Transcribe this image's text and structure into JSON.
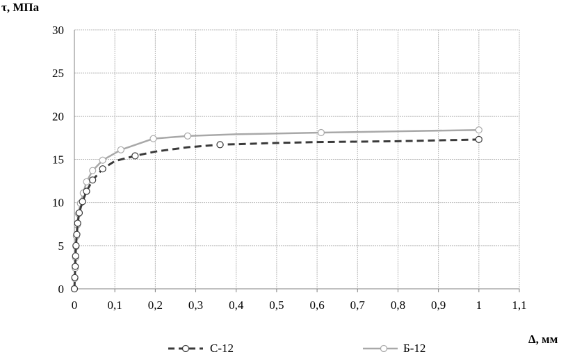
{
  "chart_data": {
    "type": "line",
    "ylabel": "τ, МПа",
    "xlabel": "Δ, мм",
    "xlim": [
      0,
      1.1
    ],
    "ylim": [
      0,
      30
    ],
    "x_ticks": [
      "0",
      "0,1",
      "0,2",
      "0,3",
      "0,4",
      "0,5",
      "0,6",
      "0,7",
      "0,8",
      "0,9",
      "1",
      "1,1"
    ],
    "y_ticks": [
      "0",
      "5",
      "10",
      "15",
      "20",
      "25",
      "30"
    ],
    "grid": true,
    "legend_position": "bottom",
    "series": [
      {
        "name": "С-12",
        "style": "dashed",
        "color": "#3a3a3a",
        "points": [
          {
            "x": 0,
            "y": 0
          },
          {
            "x": 0.001,
            "y": 1.3
          },
          {
            "x": 0.002,
            "y": 2.6
          },
          {
            "x": 0.003,
            "y": 3.8
          },
          {
            "x": 0.004,
            "y": 5.0
          },
          {
            "x": 0.006,
            "y": 6.3
          },
          {
            "x": 0.008,
            "y": 7.6
          },
          {
            "x": 0.012,
            "y": 8.8
          },
          {
            "x": 0.02,
            "y": 10.1
          },
          {
            "x": 0.03,
            "y": 11.3
          },
          {
            "x": 0.045,
            "y": 12.6
          },
          {
            "x": 0.07,
            "y": 13.9
          },
          {
            "x": 0.1,
            "y": 14.8
          },
          {
            "x": 0.15,
            "y": 15.4
          },
          {
            "x": 0.2,
            "y": 15.9
          },
          {
            "x": 0.28,
            "y": 16.4
          },
          {
            "x": 0.36,
            "y": 16.7
          },
          {
            "x": 0.5,
            "y": 16.9
          },
          {
            "x": 0.6,
            "y": 17.0
          },
          {
            "x": 0.8,
            "y": 17.1
          },
          {
            "x": 1.0,
            "y": 17.3
          }
        ],
        "marked_x": [
          0,
          0.001,
          0.002,
          0.003,
          0.004,
          0.006,
          0.008,
          0.012,
          0.02,
          0.03,
          0.045,
          0.07,
          0.15,
          0.36,
          1.0
        ]
      },
      {
        "name": "Б-12",
        "style": "solid",
        "color": "#a8a8a8",
        "points": [
          {
            "x": 0,
            "y": 0
          },
          {
            "x": 0.001,
            "y": 1.2
          },
          {
            "x": 0.002,
            "y": 2.4
          },
          {
            "x": 0.003,
            "y": 3.6
          },
          {
            "x": 0.004,
            "y": 4.9
          },
          {
            "x": 0.005,
            "y": 6.1
          },
          {
            "x": 0.007,
            "y": 7.4
          },
          {
            "x": 0.01,
            "y": 8.7
          },
          {
            "x": 0.015,
            "y": 9.9
          },
          {
            "x": 0.022,
            "y": 11.1
          },
          {
            "x": 0.03,
            "y": 12.4
          },
          {
            "x": 0.045,
            "y": 13.7
          },
          {
            "x": 0.07,
            "y": 14.9
          },
          {
            "x": 0.115,
            "y": 16.1
          },
          {
            "x": 0.195,
            "y": 17.4
          },
          {
            "x": 0.28,
            "y": 17.7
          },
          {
            "x": 0.4,
            "y": 17.9
          },
          {
            "x": 0.61,
            "y": 18.1
          },
          {
            "x": 0.8,
            "y": 18.25
          },
          {
            "x": 1.0,
            "y": 18.4
          }
        ],
        "marked_x": [
          0,
          0.001,
          0.002,
          0.003,
          0.004,
          0.005,
          0.007,
          0.01,
          0.015,
          0.022,
          0.03,
          0.045,
          0.07,
          0.115,
          0.195,
          0.28,
          0.61,
          1.0
        ]
      }
    ]
  }
}
